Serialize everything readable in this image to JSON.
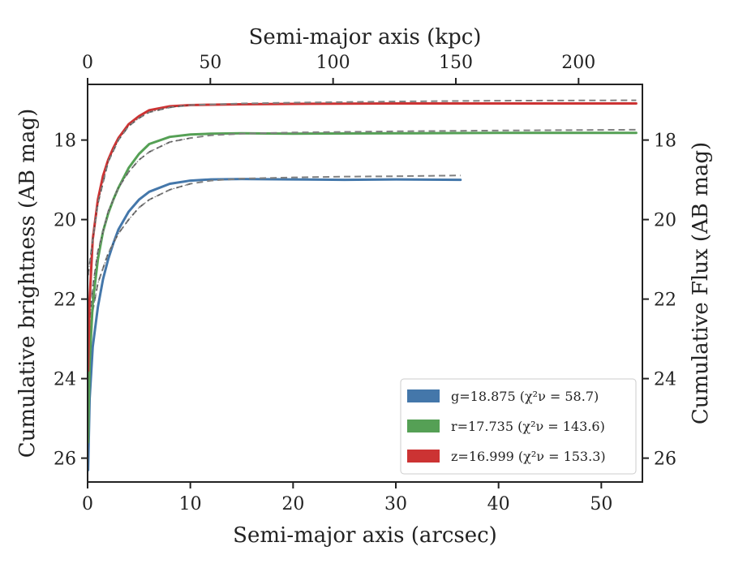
{
  "chart_data": {
    "type": "line",
    "xlabel": "Semi-major axis (arcsec)",
    "ylabel": "Cumulative brightness (AB mag)",
    "x2label": "Semi-major axis (kpc)",
    "y2label": "Cumulative Flux (AB mag)",
    "xlim": [
      0,
      54
    ],
    "ylim": [
      26.6,
      16.6
    ],
    "x2lim": [
      0,
      226
    ],
    "y_inverted": true,
    "xticks": [
      "0",
      "10",
      "20",
      "30",
      "40",
      "50"
    ],
    "yticks": [
      "18",
      "20",
      "22",
      "24",
      "26"
    ],
    "x2ticks": [
      "0",
      "50",
      "100",
      "150",
      "200"
    ],
    "legend_position": "lower right",
    "grid": false,
    "series": [
      {
        "name": "g=18.875 (χ²ν = 58.7)",
        "band": "g",
        "color": "#4477aa",
        "model_color": "#808080",
        "data": [
          [
            0.05,
            26.3
          ],
          [
            0.2,
            24.5
          ],
          [
            0.5,
            23.2
          ],
          [
            1,
            22.2
          ],
          [
            1.5,
            21.5
          ],
          [
            2,
            21.0
          ],
          [
            2.5,
            20.6
          ],
          [
            3,
            20.25
          ],
          [
            4,
            19.8
          ],
          [
            5,
            19.5
          ],
          [
            6,
            19.3
          ],
          [
            8,
            19.1
          ],
          [
            10,
            19.02
          ],
          [
            12,
            18.99
          ],
          [
            15,
            18.98
          ],
          [
            20,
            18.99
          ],
          [
            25,
            19.0
          ],
          [
            30,
            18.99
          ],
          [
            36.3,
            19.0
          ]
        ],
        "model": [
          [
            0.05,
            23.1
          ],
          [
            0.5,
            22.3
          ],
          [
            1,
            21.6
          ],
          [
            2,
            20.85
          ],
          [
            3,
            20.35
          ],
          [
            4,
            20.0
          ],
          [
            5,
            19.7
          ],
          [
            6,
            19.5
          ],
          [
            8,
            19.25
          ],
          [
            10,
            19.1
          ],
          [
            12,
            19.02
          ],
          [
            15,
            18.97
          ],
          [
            20,
            18.94
          ],
          [
            25,
            18.92
          ],
          [
            30,
            18.91
          ],
          [
            36.3,
            18.89
          ]
        ]
      },
      {
        "name": "r=17.735 (χ²ν = 143.6)",
        "band": "r",
        "color": "#55a055",
        "model_color": "#808080",
        "data": [
          [
            0.05,
            25.6
          ],
          [
            0.2,
            23.6
          ],
          [
            0.5,
            22.1
          ],
          [
            1,
            21.0
          ],
          [
            1.5,
            20.3
          ],
          [
            2,
            19.85
          ],
          [
            2.5,
            19.5
          ],
          [
            3,
            19.2
          ],
          [
            4,
            18.7
          ],
          [
            5,
            18.35
          ],
          [
            6,
            18.1
          ],
          [
            8,
            17.92
          ],
          [
            10,
            17.86
          ],
          [
            12,
            17.84
          ],
          [
            15,
            17.83
          ],
          [
            20,
            17.84
          ],
          [
            30,
            17.83
          ],
          [
            40,
            17.82
          ],
          [
            53.4,
            17.82
          ]
        ],
        "model": [
          [
            0.05,
            23.0
          ],
          [
            0.5,
            21.7
          ],
          [
            1,
            20.8
          ],
          [
            2,
            19.8
          ],
          [
            3,
            19.2
          ],
          [
            4,
            18.8
          ],
          [
            5,
            18.5
          ],
          [
            6,
            18.3
          ],
          [
            8,
            18.05
          ],
          [
            10,
            17.95
          ],
          [
            12,
            17.88
          ],
          [
            15,
            17.84
          ],
          [
            20,
            17.81
          ],
          [
            30,
            17.78
          ],
          [
            40,
            17.76
          ],
          [
            53.4,
            17.74
          ]
        ]
      },
      {
        "name": "z=16.999 (χ²ν = 153.3)",
        "band": "z",
        "color": "#cc3333",
        "model_color": "#808080",
        "data": [
          [
            0.05,
            23.8
          ],
          [
            0.2,
            22.0
          ],
          [
            0.5,
            20.5
          ],
          [
            1,
            19.5
          ],
          [
            1.5,
            18.9
          ],
          [
            2,
            18.5
          ],
          [
            2.5,
            18.2
          ],
          [
            3,
            17.95
          ],
          [
            4,
            17.6
          ],
          [
            5,
            17.4
          ],
          [
            6,
            17.25
          ],
          [
            8,
            17.15
          ],
          [
            10,
            17.12
          ],
          [
            15,
            17.1
          ],
          [
            20,
            17.09
          ],
          [
            30,
            17.08
          ],
          [
            40,
            17.08
          ],
          [
            53.4,
            17.08
          ]
        ],
        "model": [
          [
            0.05,
            21.4
          ],
          [
            0.5,
            20.5
          ],
          [
            1,
            19.6
          ],
          [
            2,
            18.55
          ],
          [
            3,
            18.0
          ],
          [
            4,
            17.65
          ],
          [
            5,
            17.45
          ],
          [
            6,
            17.3
          ],
          [
            8,
            17.18
          ],
          [
            10,
            17.12
          ],
          [
            15,
            17.08
          ],
          [
            20,
            17.06
          ],
          [
            30,
            17.03
          ],
          [
            40,
            17.01
          ],
          [
            53.4,
            17.0
          ]
        ]
      }
    ]
  }
}
